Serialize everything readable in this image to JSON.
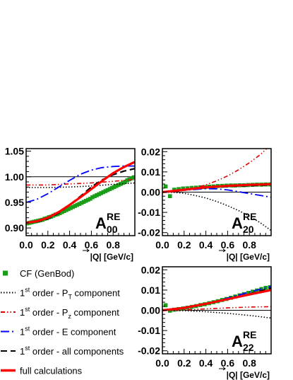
{
  "chart_data": [
    {
      "type": "line",
      "panel_label": "A",
      "label_super": "RE",
      "label_sub": "00",
      "xlabel": "|Q| [GeV/c]",
      "xlim": [
        0,
        1.0
      ],
      "ylim": [
        0.885,
        1.055
      ],
      "xticks": [
        0.0,
        0.2,
        0.4,
        0.6,
        0.8
      ],
      "yticks": [
        0.9,
        0.95,
        1.0,
        1.05
      ],
      "ytick_labels": [
        "0.90",
        "0.95",
        "1.00",
        "1.05"
      ],
      "reference_line": 1.0,
      "series": [
        {
          "name": "CF (GenBod)",
          "style": "marker",
          "color": "#1a9e1a",
          "x": [
            0.01,
            0.03,
            0.05,
            0.07,
            0.09,
            0.11,
            0.13,
            0.15,
            0.17,
            0.19,
            0.21,
            0.23,
            0.25,
            0.27,
            0.29,
            0.31,
            0.33,
            0.35,
            0.37,
            0.39,
            0.41,
            0.43,
            0.45,
            0.47,
            0.49,
            0.51,
            0.53,
            0.55,
            0.57,
            0.59,
            0.61,
            0.63,
            0.65,
            0.67,
            0.69,
            0.71,
            0.73,
            0.75,
            0.77,
            0.79,
            0.81,
            0.83,
            0.85,
            0.87,
            0.89,
            0.91,
            0.93,
            0.95,
            0.97,
            0.99
          ],
          "y": [
            0.909,
            0.91,
            0.911,
            0.912,
            0.913,
            0.914,
            0.915,
            0.916,
            0.918,
            0.919,
            0.921,
            0.922,
            0.924,
            0.926,
            0.927,
            0.929,
            0.931,
            0.933,
            0.935,
            0.937,
            0.939,
            0.941,
            0.943,
            0.945,
            0.947,
            0.949,
            0.951,
            0.953,
            0.955,
            0.957,
            0.96,
            0.962,
            0.964,
            0.966,
            0.968,
            0.97,
            0.972,
            0.974,
            0.976,
            0.978,
            0.98,
            0.982,
            0.984,
            0.986,
            0.988,
            0.99,
            0.993,
            0.995,
            0.997,
            0.999
          ]
        },
        {
          "name": "1st order - PT component",
          "style": "dotted",
          "color": "#000000",
          "x": [
            0.0,
            0.2,
            0.4,
            0.6,
            0.8,
            1.0
          ],
          "y": [
            0.979,
            0.979,
            0.98,
            0.982,
            0.985,
            0.988
          ]
        },
        {
          "name": "1st order - Pz component",
          "style": "dashdotdot",
          "color": "#e00000",
          "x": [
            0.0,
            0.2,
            0.4,
            0.6,
            0.8,
            1.0
          ],
          "y": [
            0.984,
            0.984,
            0.986,
            0.988,
            0.991,
            0.995
          ]
        },
        {
          "name": "1st order - E component",
          "style": "dashdot",
          "color": "#0000ff",
          "x": [
            0.0,
            0.1,
            0.2,
            0.3,
            0.4,
            0.5,
            0.6,
            0.7,
            0.8,
            0.9,
            1.0
          ],
          "y": [
            0.95,
            0.956,
            0.967,
            0.98,
            0.993,
            1.005,
            1.013,
            1.018,
            1.02,
            1.021,
            1.021
          ]
        },
        {
          "name": "1st order - all components",
          "style": "dashed",
          "color": "#000000",
          "x": [
            0.0,
            0.1,
            0.2,
            0.3,
            0.4,
            0.5,
            0.6,
            0.7,
            0.8,
            0.9,
            1.0
          ],
          "y": [
            0.91,
            0.912,
            0.918,
            0.929,
            0.945,
            0.962,
            0.98,
            0.994,
            1.004,
            1.011,
            1.016
          ]
        },
        {
          "name": "full calculations",
          "style": "solid",
          "color": "#ff0000",
          "x": [
            0.0,
            0.1,
            0.2,
            0.3,
            0.4,
            0.5,
            0.6,
            0.7,
            0.8,
            0.9,
            1.0
          ],
          "y": [
            0.91,
            0.913,
            0.92,
            0.931,
            0.945,
            0.96,
            0.976,
            0.992,
            1.007,
            1.019,
            1.029
          ]
        }
      ]
    },
    {
      "type": "line",
      "panel_label": "A",
      "label_super": "RE",
      "label_sub": "20",
      "xlabel": "|Q| [GeV/c]",
      "xlim": [
        0,
        1.0
      ],
      "ylim": [
        -0.0215,
        0.0215
      ],
      "xticks": [
        0.0,
        0.2,
        0.4,
        0.6,
        0.8
      ],
      "yticks": [
        -0.02,
        -0.01,
        0.0,
        0.01,
        0.02
      ],
      "ytick_labels": [
        "-0.02",
        "-0.01",
        "0.00",
        "0.01",
        "0.02"
      ],
      "reference_line": 0.0,
      "series": [
        {
          "name": "CF (GenBod)",
          "style": "marker",
          "color": "#1a9e1a",
          "x": [
            0.03,
            0.07,
            0.11,
            0.15,
            0.19,
            0.23,
            0.27,
            0.31,
            0.35,
            0.39,
            0.43,
            0.47,
            0.51,
            0.55,
            0.59,
            0.63,
            0.67,
            0.71,
            0.75,
            0.79,
            0.83,
            0.87,
            0.91,
            0.95,
            0.99
          ],
          "y": [
            0.0028,
            -0.002,
            0.0012,
            0.0015,
            0.0018,
            0.0019,
            0.0021,
            0.0022,
            0.0024,
            0.0025,
            0.0027,
            0.0028,
            0.003,
            0.0031,
            0.0032,
            0.0033,
            0.0033,
            0.0034,
            0.0034,
            0.0035,
            0.0036,
            0.0037,
            0.0037,
            0.0038,
            0.0038
          ]
        },
        {
          "name": "1st order - PT component",
          "style": "dotted",
          "color": "#000000",
          "x": [
            0.0,
            0.1,
            0.2,
            0.3,
            0.4,
            0.5,
            0.6,
            0.7,
            0.8,
            0.9,
            1.0
          ],
          "y": [
            0.0,
            -0.0001,
            -0.0006,
            -0.0016,
            -0.0029,
            -0.0046,
            -0.0067,
            -0.0091,
            -0.0119,
            -0.0151,
            -0.019
          ]
        },
        {
          "name": "1st order - Pz component",
          "style": "dashdotdot",
          "color": "#e00000",
          "x": [
            0.0,
            0.1,
            0.2,
            0.3,
            0.4,
            0.5,
            0.6,
            0.7,
            0.8,
            0.9,
            1.0
          ],
          "y": [
            0.0,
            0.0002,
            0.0008,
            0.002,
            0.0036,
            0.0056,
            0.008,
            0.011,
            0.0145,
            0.0185,
            0.0235
          ]
        },
        {
          "name": "1st order - E component",
          "style": "dashdot",
          "color": "#0000ff",
          "x": [
            0.0,
            0.2,
            0.4,
            0.5,
            0.6,
            0.7,
            0.8,
            0.9,
            1.0
          ],
          "y": [
            0.0,
            0.0009,
            0.0017,
            0.0016,
            0.0011,
            0.0002,
            -0.0007,
            -0.0016,
            -0.0025
          ]
        },
        {
          "name": "1st order - all components",
          "style": "dashed",
          "color": "#000000",
          "x": [
            0.0,
            0.2,
            0.4,
            0.6,
            0.8,
            1.0
          ],
          "y": [
            0.0,
            0.0011,
            0.0022,
            0.0028,
            0.0032,
            0.0036
          ]
        },
        {
          "name": "full calculations",
          "style": "solid",
          "color": "#ff0000",
          "x": [
            0.0,
            0.2,
            0.4,
            0.6,
            0.8,
            1.0
          ],
          "y": [
            0.0,
            0.0012,
            0.0024,
            0.0031,
            0.0036,
            0.0039
          ]
        }
      ]
    },
    {
      "type": "line",
      "panel_label": "A",
      "label_super": "RE",
      "label_sub": "22",
      "xlabel": "|Q| [GeV/c]",
      "xlim": [
        0,
        1.0
      ],
      "ylim": [
        -0.0215,
        0.0215
      ],
      "xticks": [
        0.0,
        0.2,
        0.4,
        0.6,
        0.8
      ],
      "yticks": [
        -0.02,
        -0.01,
        0.0,
        0.01,
        0.02
      ],
      "ytick_labels": [
        "-0.02",
        "-0.01",
        "0.00",
        "0.01",
        "0.02"
      ],
      "reference_line": 0.0,
      "series": [
        {
          "name": "CF (GenBod)",
          "style": "marker",
          "color": "#1a9e1a",
          "x": [
            0.03,
            0.07,
            0.11,
            0.15,
            0.19,
            0.23,
            0.27,
            0.31,
            0.35,
            0.39,
            0.43,
            0.47,
            0.51,
            0.55,
            0.59,
            0.63,
            0.67,
            0.71,
            0.75,
            0.79,
            0.83,
            0.87,
            0.91,
            0.95,
            0.99
          ],
          "y": [
            0.0025,
            -0.0002,
            0.0003,
            0.0006,
            0.0009,
            0.0013,
            0.0017,
            0.0021,
            0.0026,
            0.003,
            0.0035,
            0.004,
            0.0045,
            0.0051,
            0.0056,
            0.0062,
            0.0068,
            0.0074,
            0.008,
            0.0086,
            0.0092,
            0.0098,
            0.0105,
            0.0111,
            0.0114
          ]
        },
        {
          "name": "1st order - PT component",
          "style": "dotted",
          "color": "#000000",
          "x": [
            0.0,
            0.2,
            0.4,
            0.6,
            0.8,
            1.0
          ],
          "y": [
            0.0,
            -0.0002,
            -0.0007,
            -0.0015,
            -0.0025,
            -0.0038
          ]
        },
        {
          "name": "1st order - Pz component",
          "style": "dashdotdot",
          "color": "#e00000",
          "x": [
            0.0,
            0.2,
            0.4,
            0.6,
            0.8,
            1.0
          ],
          "y": [
            0.0,
            0.0002,
            0.0007,
            0.0012,
            0.0016,
            0.0018
          ]
        },
        {
          "name": "1st order - E component",
          "style": "dashdot",
          "color": "#0000ff",
          "x": [
            0.0,
            0.2,
            0.4,
            0.6,
            0.8,
            1.0
          ],
          "y": [
            0.0,
            0.001,
            0.0032,
            0.006,
            0.009,
            0.0118
          ]
        },
        {
          "name": "1st order - all components",
          "style": "dashed",
          "color": "#000000",
          "x": [
            0.0,
            0.2,
            0.4,
            0.6,
            0.8,
            1.0
          ],
          "y": [
            0.0,
            0.001,
            0.003,
            0.0055,
            0.008,
            0.011
          ]
        },
        {
          "name": "full calculations",
          "style": "solid",
          "color": "#ff0000",
          "x": [
            0.0,
            0.2,
            0.4,
            0.6,
            0.8,
            1.0
          ],
          "y": [
            0.0,
            0.0012,
            0.0032,
            0.0055,
            0.0078,
            0.01
          ]
        }
      ]
    }
  ],
  "legend": [
    {
      "label": "CF (GenBod)",
      "prefix": "",
      "sup": "",
      "suffix": "",
      "sub": "",
      "style": "marker",
      "color": "#1a9e1a"
    },
    {
      "label": "1st order - PT component",
      "prefix": "1",
      "sup": "st",
      "suffix": " order - P",
      "sub": "T",
      "tail": " component",
      "style": "dotted",
      "color": "#000000"
    },
    {
      "label": "1st order - Pz component",
      "prefix": "1",
      "sup": "st",
      "suffix": " order - P",
      "sub": "z",
      "tail": " component",
      "style": "dashdotdot",
      "color": "#e00000"
    },
    {
      "label": "1st order - E component",
      "prefix": "1",
      "sup": "st",
      "suffix": " order - E component",
      "sub": "",
      "tail": "",
      "style": "dashdot",
      "color": "#0000ff"
    },
    {
      "label": "1st order - all components",
      "prefix": "1",
      "sup": "st",
      "suffix": " order - all components",
      "sub": "",
      "tail": "",
      "style": "dashed",
      "color": "#000000"
    },
    {
      "label": "full calculations",
      "prefix": "",
      "sup": "",
      "suffix": "",
      "sub": "",
      "style": "solid",
      "color": "#ff0000"
    }
  ]
}
